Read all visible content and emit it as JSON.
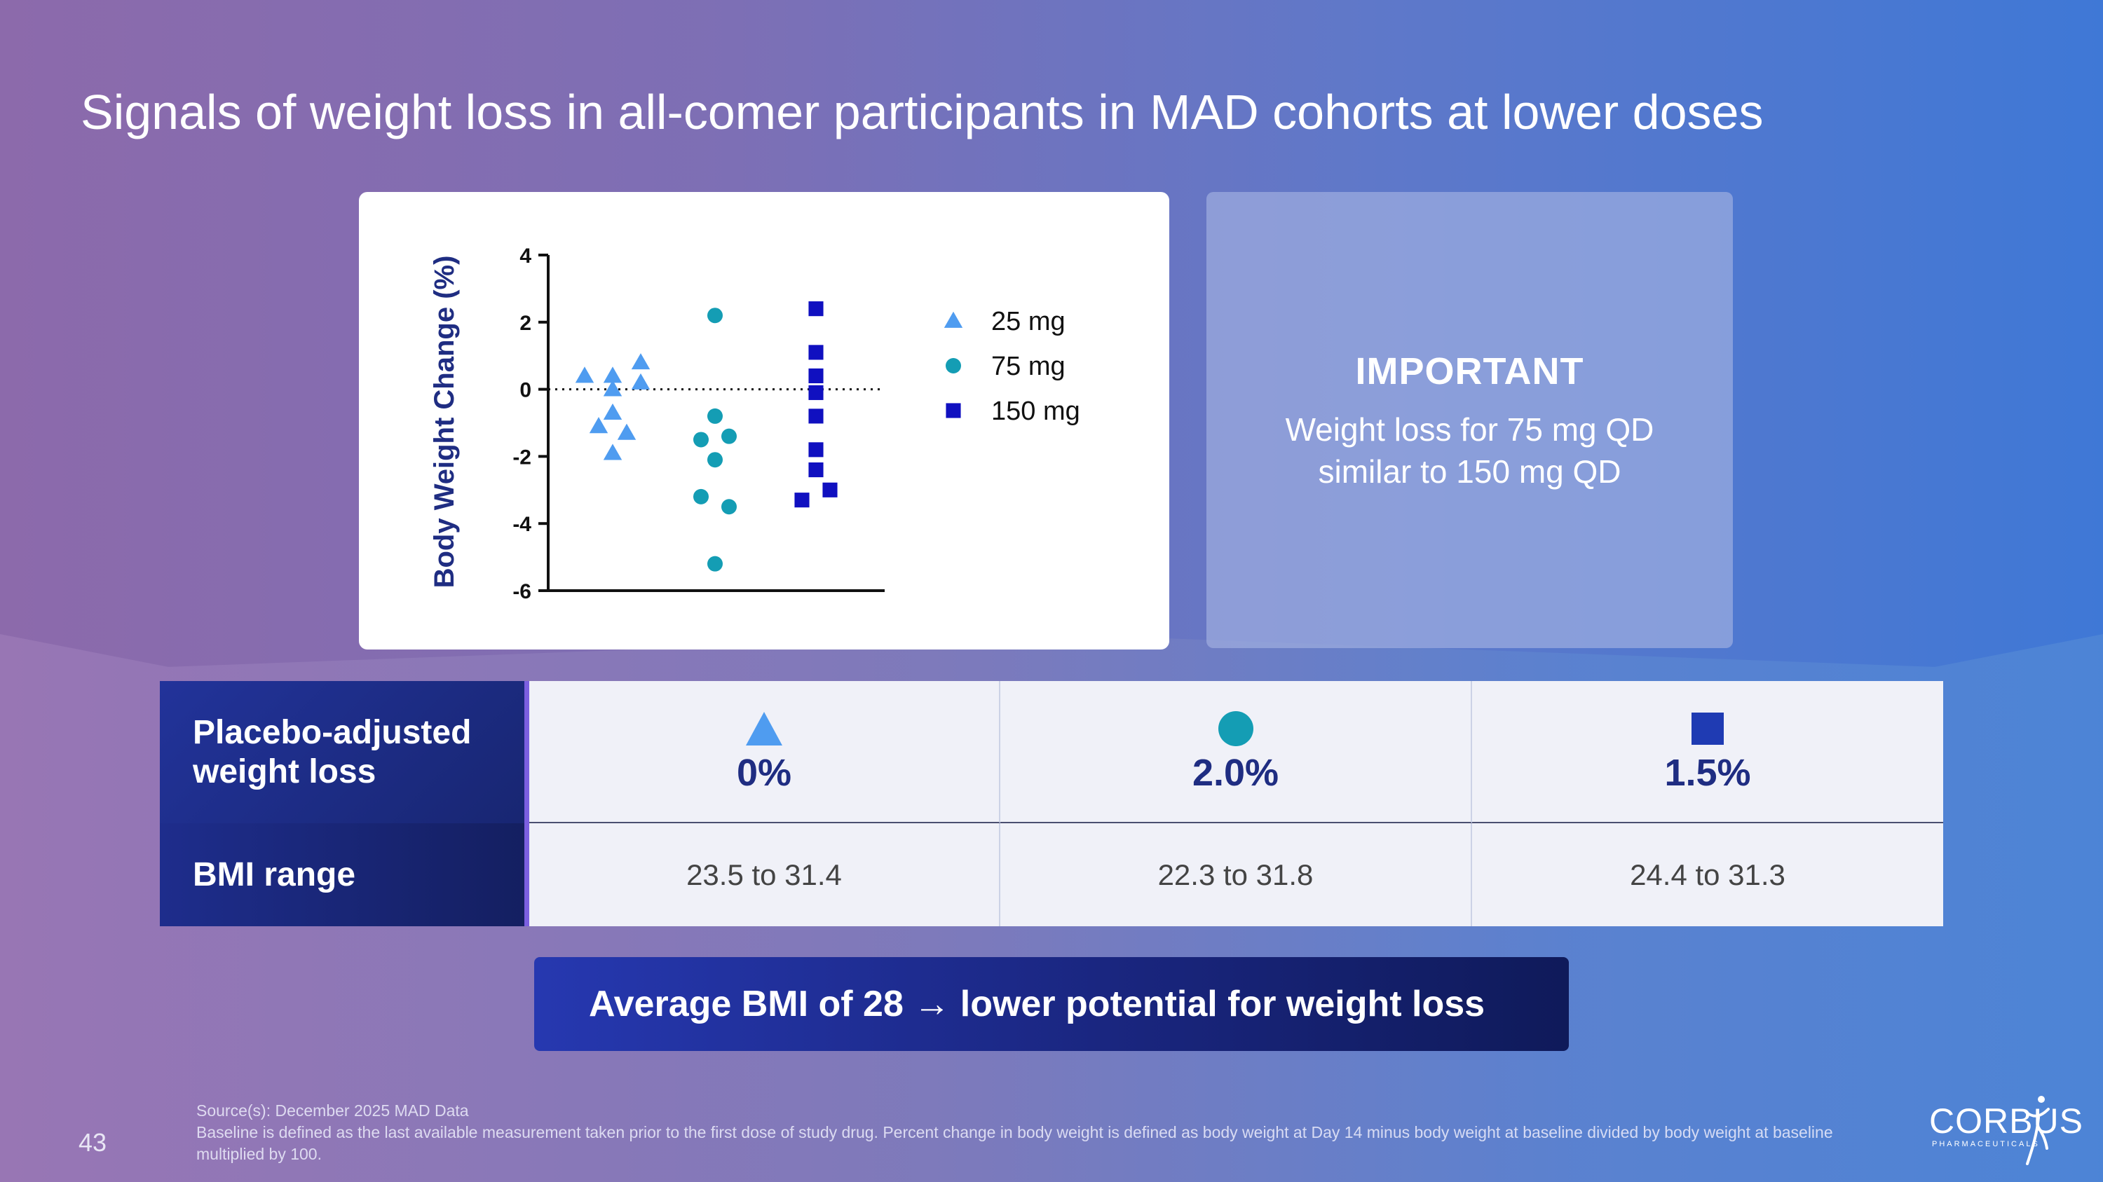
{
  "slide": {
    "title": "Signals of weight loss in all-comer participants in MAD cohorts at lower doses",
    "page_number": "43"
  },
  "important": {
    "heading": "IMPORTANT",
    "text": "Weight loss for 75 mg QD similar to 150 mg QD"
  },
  "table": {
    "row1_label": "Placebo-adjusted weight loss",
    "row2_label": "BMI range",
    "columns": [
      {
        "shape": "triangle-icon",
        "color": "#4f9cf0",
        "loss": "0%",
        "bmi": "23.5 to 31.4"
      },
      {
        "shape": "circle-icon",
        "color": "#149db4",
        "loss": "2.0%",
        "bmi": "22.3 to 31.8"
      },
      {
        "shape": "square-icon",
        "color": "#1f3bb3",
        "loss": "1.5%",
        "bmi": "24.4 to 31.3"
      }
    ]
  },
  "callout": {
    "text": "Average BMI of 28 → lower potential for weight loss"
  },
  "footnote": {
    "source": "Source(s): December 2025 MAD Data",
    "definition": "Baseline is defined as the last available measurement taken prior to the first dose of study drug. Percent change in body weight is defined as body weight at Day 14 minus body weight at baseline divided by body weight at baseline multiplied by 100."
  },
  "logo": {
    "name": "CORBUS",
    "subtitle": "PHARMACEUTICALS"
  },
  "chart_data": {
    "type": "scatter",
    "title": "",
    "xlabel": "",
    "ylabel": "Body Weight Change (%)",
    "ylim": [
      -6,
      4
    ],
    "yticks": [
      4,
      2,
      0,
      -2,
      -4,
      -6
    ],
    "reference_line": 0,
    "legend_position": "top-right",
    "series": [
      {
        "name": "25 mg",
        "marker": "triangle",
        "color": "#4f9cf0",
        "points": [
          [
            -0.4,
            0.4
          ],
          [
            0.0,
            0.4
          ],
          [
            0.4,
            0.8
          ],
          [
            0.0,
            0.0
          ],
          [
            0.4,
            0.2
          ],
          [
            0.0,
            -0.7
          ],
          [
            -0.2,
            -1.1
          ],
          [
            0.2,
            -1.3
          ],
          [
            0.0,
            -1.9
          ]
        ]
      },
      {
        "name": "75 mg",
        "marker": "circle",
        "color": "#149db4",
        "points": [
          [
            0.0,
            2.2
          ],
          [
            0.0,
            -0.8
          ],
          [
            -0.2,
            -1.5
          ],
          [
            0.2,
            -1.4
          ],
          [
            0.0,
            -2.1
          ],
          [
            -0.2,
            -3.2
          ],
          [
            0.2,
            -3.5
          ],
          [
            0.0,
            -5.2
          ]
        ]
      },
      {
        "name": "150 mg",
        "marker": "square",
        "color": "#1010c0",
        "points": [
          [
            0.0,
            2.4
          ],
          [
            0.0,
            1.1
          ],
          [
            0.0,
            0.4
          ],
          [
            0.0,
            -0.1
          ],
          [
            0.0,
            -0.8
          ],
          [
            0.0,
            -1.8
          ],
          [
            0.0,
            -2.4
          ],
          [
            -0.2,
            -3.3
          ],
          [
            0.2,
            -3.0
          ]
        ]
      }
    ]
  }
}
